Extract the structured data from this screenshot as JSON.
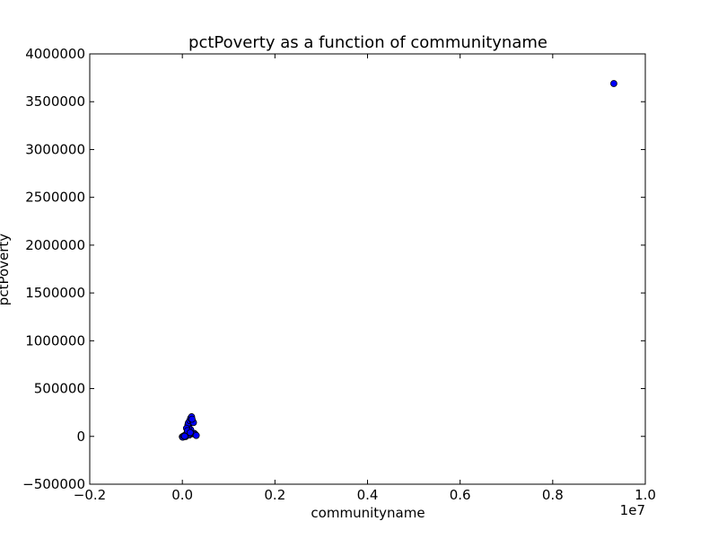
{
  "chart_data": {
    "type": "scatter",
    "title": "pctPoverty as a function of communityname",
    "xlabel": "communityname",
    "ylabel": "pctPoverty",
    "x_offset_label": "1e7",
    "xlim": [
      -0.2,
      1.0
    ],
    "ylim": [
      -500000,
      4000000
    ],
    "x_ticks": [
      -0.2,
      0.0,
      0.2,
      0.4,
      0.6,
      0.8,
      1.0
    ],
    "x_tick_labels": [
      "−0.2",
      "0.0",
      "0.2",
      "0.4",
      "0.6",
      "0.8",
      "1.0"
    ],
    "y_ticks": [
      -500000,
      0,
      500000,
      1000000,
      1500000,
      2000000,
      2500000,
      3000000,
      3500000,
      4000000
    ],
    "y_tick_labels": [
      "−500000",
      "0",
      "500000",
      "1000000",
      "1500000",
      "2000000",
      "2500000",
      "3000000",
      "3500000",
      "4000000"
    ],
    "grid": false,
    "marker_color": "#0000ff",
    "marker_edge_color": "#000000",
    "points": [
      {
        "x": 0.0,
        "y": -5000
      },
      {
        "x": 0.002,
        "y": 0
      },
      {
        "x": 0.004,
        "y": 3000
      },
      {
        "x": 0.001,
        "y": -8000
      },
      {
        "x": 0.003,
        "y": 5000
      },
      {
        "x": 0.006,
        "y": 10000
      },
      {
        "x": 0.008,
        "y": 20000
      },
      {
        "x": 0.01,
        "y": 35000
      },
      {
        "x": 0.012,
        "y": 50000
      },
      {
        "x": 0.015,
        "y": 15000
      },
      {
        "x": 0.02,
        "y": 30000
      },
      {
        "x": 0.018,
        "y": 70000
      },
      {
        "x": 0.014,
        "y": 100000
      },
      {
        "x": 0.012,
        "y": 120000
      },
      {
        "x": 0.013,
        "y": 140000
      },
      {
        "x": 0.016,
        "y": 165000
      },
      {
        "x": 0.018,
        "y": 190000
      },
      {
        "x": 0.02,
        "y": 205000
      },
      {
        "x": 0.022,
        "y": 160000
      },
      {
        "x": 0.024,
        "y": 145000
      },
      {
        "x": 0.025,
        "y": 25000
      },
      {
        "x": 0.026,
        "y": 30000
      },
      {
        "x": 0.028,
        "y": 20000
      },
      {
        "x": 0.03,
        "y": 10000
      },
      {
        "x": 0.009,
        "y": 85000
      },
      {
        "x": 0.007,
        "y": -2000
      },
      {
        "x": 0.005,
        "y": 2000
      },
      {
        "x": 0.011,
        "y": 60000
      },
      {
        "x": 0.017,
        "y": 40000
      },
      {
        "x": 0.021,
        "y": 180000
      },
      {
        "x": 0.932,
        "y": 3690000
      }
    ]
  }
}
